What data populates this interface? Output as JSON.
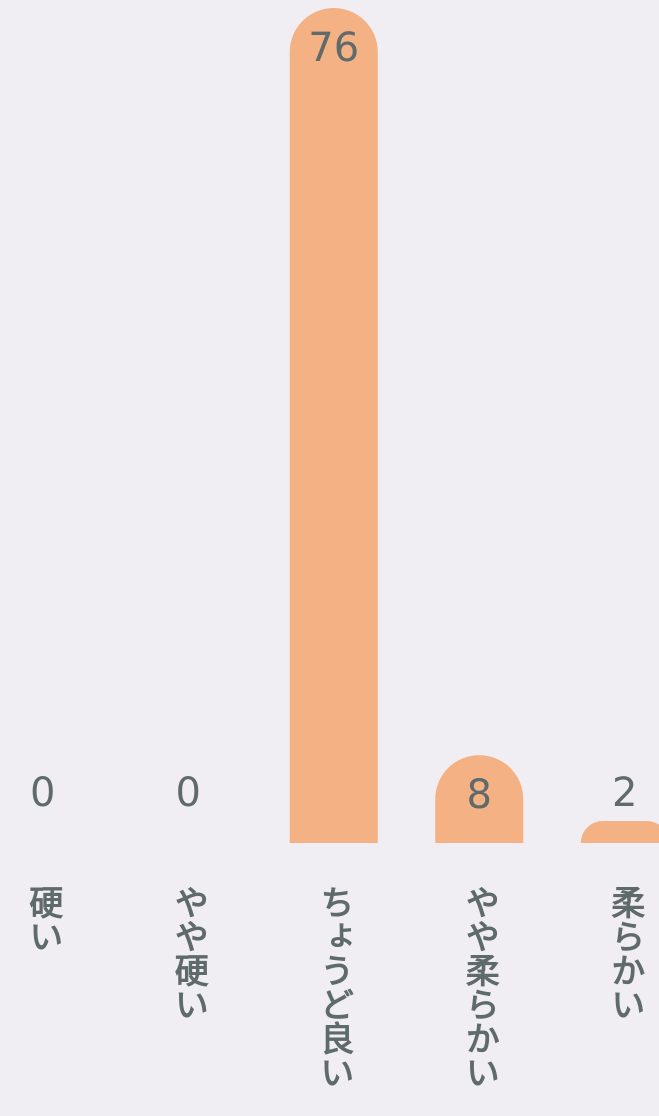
{
  "chart_data": {
    "type": "bar",
    "categories": [
      "硬い",
      "やや硬い",
      "ちょうど良い",
      "やや柔らかい",
      "柔らかい"
    ],
    "values": [
      0,
      0,
      76,
      8,
      2
    ],
    "color": "#f4b183"
  }
}
